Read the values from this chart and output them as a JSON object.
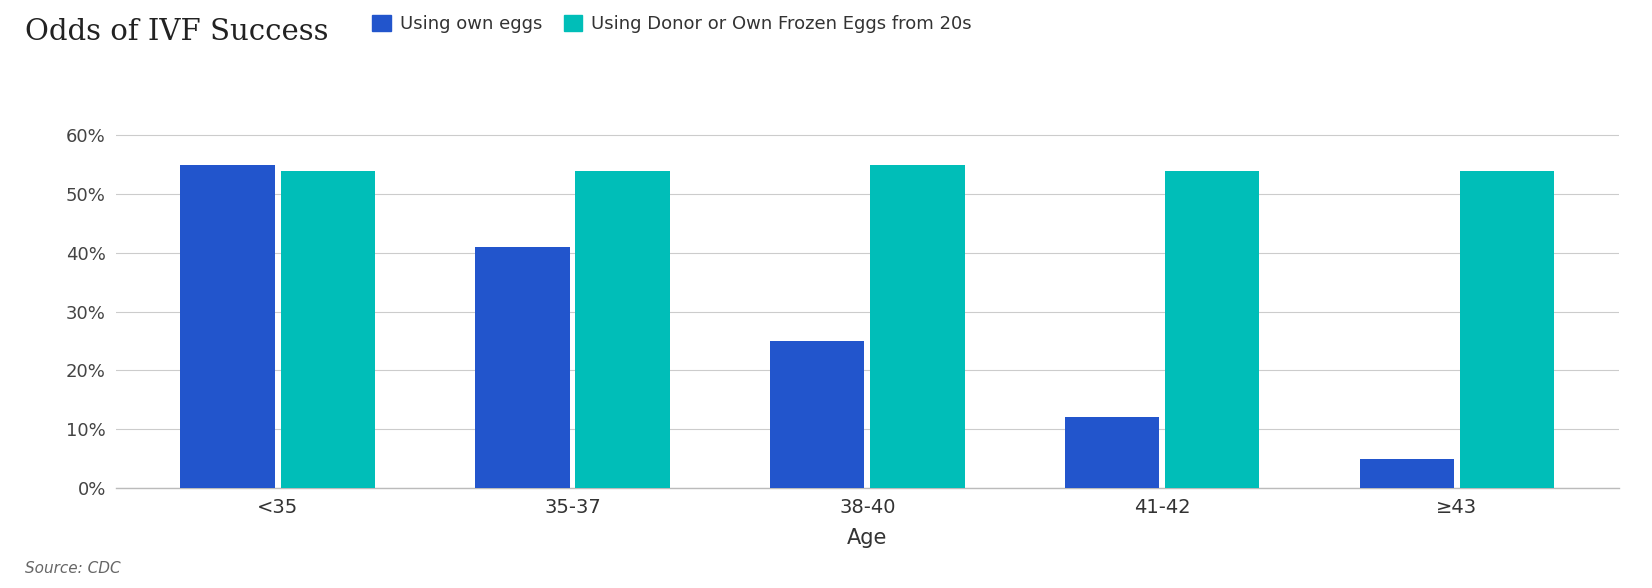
{
  "title": "Odds of IVF Success",
  "categories": [
    "<35",
    "35-37",
    "38-40",
    "41-42",
    "≥43"
  ],
  "own_eggs": [
    55,
    41,
    25,
    12,
    5
  ],
  "donor_eggs": [
    54,
    54,
    55,
    54,
    54
  ],
  "own_eggs_color": "#2255CC",
  "donor_eggs_color": "#00BEB8",
  "xlabel": "Age",
  "ylim": [
    0,
    63
  ],
  "yticks": [
    0,
    10,
    20,
    30,
    40,
    50,
    60
  ],
  "ytick_labels": [
    "0%",
    "10%",
    "20%",
    "30%",
    "40%",
    "50%",
    "60%"
  ],
  "legend_own": "Using own eggs",
  "legend_donor": "Using Donor or Own Frozen Eggs from 20s",
  "source_text": "Source: CDC",
  "bar_width": 0.32,
  "background_color": "#ffffff",
  "grid_color": "#cccccc",
  "title_fontsize": 21,
  "legend_fontsize": 13,
  "tick_fontsize": 13,
  "xlabel_fontsize": 15,
  "source_fontsize": 11
}
